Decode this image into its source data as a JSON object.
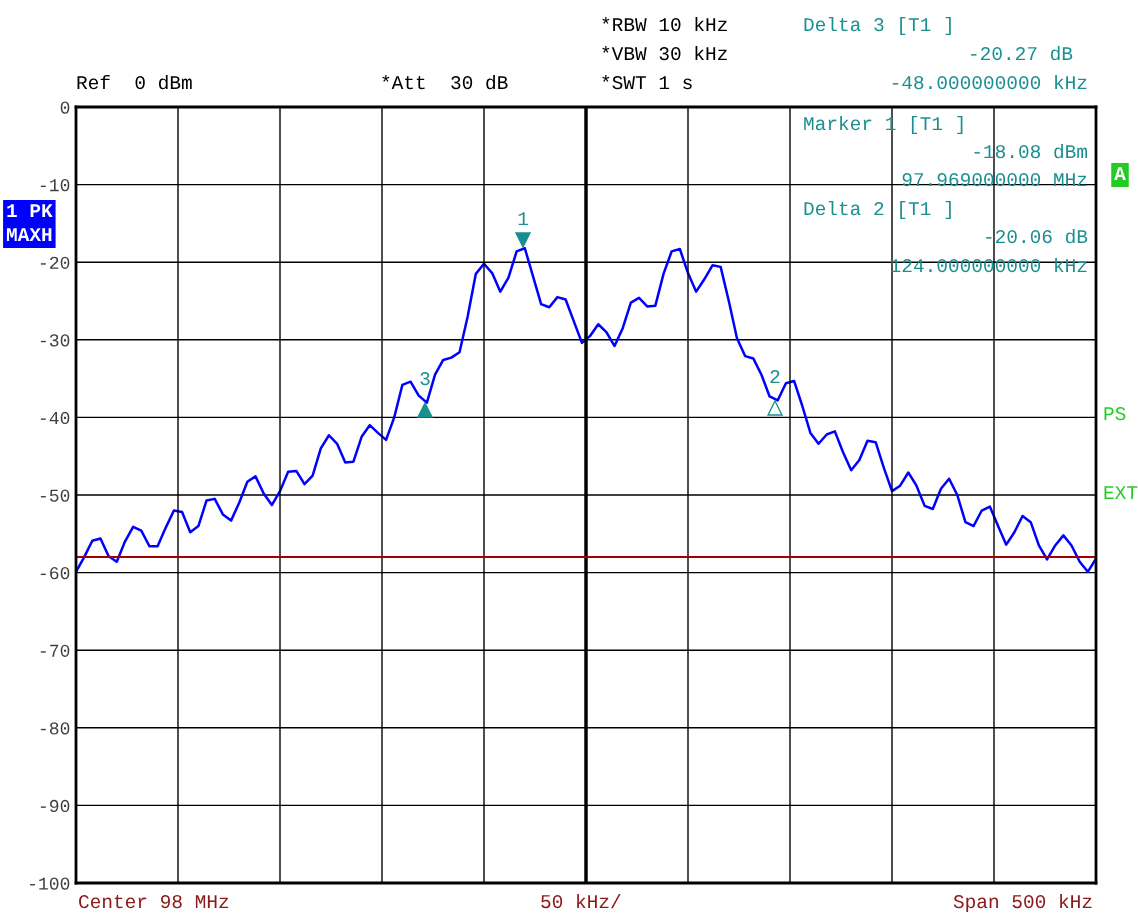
{
  "chart_data": {
    "type": "line",
    "categories": [
      null,
      null,
      null,
      null,
      null,
      null,
      null,
      null,
      null,
      null,
      null,
      null,
      null,
      null,
      null,
      null,
      null,
      null,
      null,
      null,
      null,
      null,
      null,
      null,
      null,
      null,
      null,
      null,
      null,
      null,
      null,
      null,
      null,
      null,
      null,
      null,
      null,
      null,
      null,
      null,
      null,
      null,
      null,
      null,
      null,
      null,
      null,
      null,
      null,
      null,
      null,
      null,
      null,
      null,
      null,
      null,
      null,
      null,
      null,
      null,
      null,
      null,
      null,
      null,
      null,
      null,
      null,
      null,
      null,
      null,
      null,
      null,
      null,
      null,
      null,
      null,
      null,
      null,
      null,
      null,
      null,
      null,
      null,
      null,
      null,
      null,
      null,
      null,
      null,
      null,
      null,
      null,
      null,
      null,
      null,
      null,
      null,
      null,
      null,
      null,
      null,
      null,
      null,
      null,
      null,
      null,
      null,
      null,
      null,
      null,
      null,
      null,
      null,
      null,
      null,
      null,
      null,
      null,
      null,
      null,
      null,
      null,
      null,
      null,
      null,
      null
    ],
    "series": [
      {
        "color": "#0000ff",
        "values": [
          -59.9,
          -58.0,
          -55.9,
          -55.6,
          -57.9,
          -58.6,
          -56.0,
          -54.1,
          -54.6,
          -56.6,
          -56.6,
          -54.2,
          -52.0,
          -52.2,
          -54.8,
          -54.0,
          -50.7,
          -50.5,
          -52.5,
          -53.3,
          -51.0,
          -48.3,
          -47.6,
          -49.8,
          -51.3,
          -49.5,
          -47.0,
          -46.9,
          -48.6,
          -47.5,
          -44.0,
          -42.3,
          -43.4,
          -45.8,
          -45.7,
          -42.5,
          -41.0,
          -42.0,
          -42.9,
          -40.0,
          -35.8,
          -35.4,
          -37.2,
          -38.1,
          -34.5,
          -32.6,
          -32.3,
          -31.6,
          -27.0,
          -21.5,
          -20.2,
          -21.4,
          -23.8,
          -22.0,
          -18.6,
          -18.2,
          -21.8,
          -25.4,
          -25.8,
          -24.5,
          -24.8,
          -27.6,
          -30.4,
          -29.5,
          -28.0,
          -29.0,
          -30.8,
          -28.5,
          -25.2,
          -24.6,
          -25.7,
          -25.6,
          -21.5,
          -18.6,
          -18.3,
          -21.4,
          -23.8,
          -22.2,
          -20.4,
          -20.6,
          -25.0,
          -29.8,
          -32.1,
          -32.4,
          -34.5,
          -37.3,
          -37.8,
          -35.6,
          -35.3,
          -38.5,
          -42.0,
          -43.4,
          -42.2,
          -41.8,
          -44.5,
          -46.8,
          -45.5,
          -43.0,
          -43.2,
          -46.5,
          -49.5,
          -48.8,
          -47.1,
          -48.8,
          -51.4,
          -51.8,
          -49.2,
          -47.9,
          -50.0,
          -53.5,
          -54.0,
          -52.0,
          -51.5,
          -54.0,
          -56.4,
          -54.8,
          -52.7,
          -53.5,
          -56.5,
          -58.3,
          -56.5,
          -55.2,
          -56.5,
          -58.6,
          -59.9,
          -58.2
        ]
      }
    ],
    "ylim": [
      -100,
      0
    ],
    "yticks": [
      0,
      -10,
      -20,
      -30,
      -40,
      -50,
      -60,
      -70,
      -80,
      -90,
      -100
    ],
    "tick_labels": "y",
    "grid": true,
    "legend": false,
    "marker": "none",
    "line_style": "solid",
    "ref_lines": [
      {
        "axis": "y",
        "value": -58,
        "color": "#a00000"
      }
    ],
    "annotations": [
      "1",
      "3",
      "2",
      "*RBW 10 kHz",
      "*VBW 30 kHz",
      "*SWT 1 s",
      "Ref  0 dBm",
      "*Att  30 dB",
      "Delta 3 [T1 ]",
      "-20.27 dB",
      "-48.000000000 kHz",
      "Marker 1 [T1 ]",
      "-18.08 dBm",
      "97.969000000 MHz",
      "Delta 2 [T1 ]",
      "-20.06 dB",
      "124.000000000 kHz",
      "1 PK",
      "MAXH",
      "A",
      "PS",
      "EXT",
      "Center 98 MHz",
      "50 kHz/",
      "Span 500 kHz"
    ]
  }
}
